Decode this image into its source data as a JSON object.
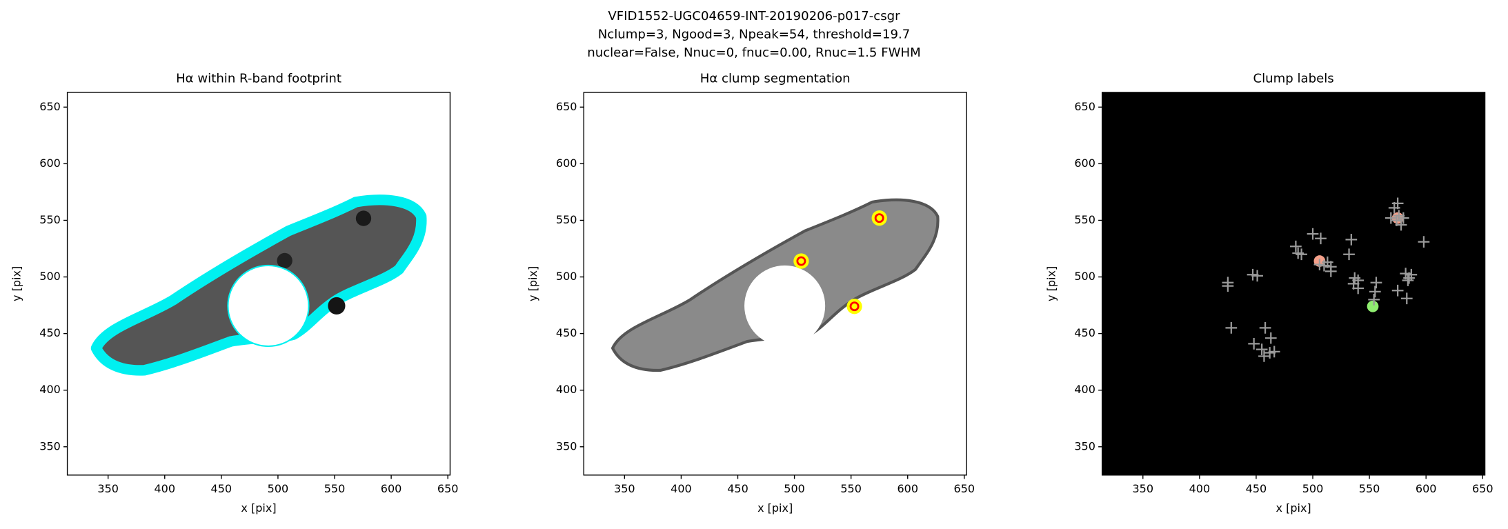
{
  "figure_title": [
    "VFID1552-UGC04659-INT-20190206-p017-csgr",
    "Nclump=3, Ngood=3, Npeak=54, threshold=19.7",
    "nuclear=False, Nnuc=0, fnuc=0.00, Rnuc=1.5 FWHM"
  ],
  "chart_data": [
    {
      "type": "image",
      "title": "Hα within R-band footprint",
      "xlabel": "x [pix]",
      "ylabel": "y [pix]",
      "xlim": [
        314,
        652
      ],
      "ylim": [
        325,
        663
      ],
      "xticks": [
        350,
        400,
        450,
        500,
        550,
        600,
        650
      ],
      "yticks": [
        350,
        400,
        450,
        500,
        550,
        600,
        650
      ]
    },
    {
      "type": "image",
      "title": "Hα clump segmentation",
      "xlabel": "x [pix]",
      "ylabel": "y [pix]",
      "xlim": [
        314,
        652
      ],
      "ylim": [
        325,
        663
      ],
      "xticks": [
        350,
        400,
        450,
        500,
        550,
        600,
        650
      ],
      "yticks": [
        350,
        400,
        450,
        500,
        550,
        600,
        650
      ],
      "series": [
        {
          "marker": "ring",
          "color": "#ff0000",
          "halo_color": "#ffff00",
          "x": [
            575,
            506,
            553
          ],
          "values": [
            552,
            514,
            474
          ]
        }
      ]
    },
    {
      "type": "image",
      "title": "Clump labels",
      "xlabel": "x [pix]",
      "ylabel": "y [pix]",
      "xlim": [
        314,
        652
      ],
      "ylim": [
        325,
        663
      ],
      "xticks": [
        350,
        400,
        450,
        500,
        550,
        600,
        650
      ],
      "yticks": [
        350,
        400,
        450,
        500,
        550,
        600,
        650
      ],
      "background": "#000000",
      "series": [
        {
          "marker": "blob",
          "colors": [
            "#f4a08a",
            "#f4a08a",
            "#90ee70"
          ],
          "x": [
            575,
            506,
            553
          ],
          "values": [
            552,
            514,
            474
          ]
        },
        {
          "marker": "plus",
          "color": "#9a9a9a",
          "x": [
            425,
            425,
            428,
            447,
            451,
            448,
            455,
            458,
            457,
            462,
            463,
            466,
            485,
            487,
            490,
            500,
            507,
            506,
            510,
            513,
            516,
            516,
            532,
            534,
            536,
            537,
            540,
            540,
            556,
            555,
            554,
            569,
            572,
            575,
            574,
            576,
            580,
            578,
            582,
            584,
            585,
            587,
            583,
            575,
            598
          ],
          "values": [
            495,
            492,
            455,
            502,
            501,
            441,
            436,
            455,
            430,
            433,
            446,
            434,
            527,
            521,
            520,
            538,
            534,
            511,
            510,
            513,
            505,
            509,
            520,
            533,
            494,
            499,
            497,
            490,
            495,
            487,
            480,
            552,
            561,
            565,
            550,
            554,
            552,
            546,
            503,
            497,
            499,
            502,
            481,
            488,
            531
          ]
        }
      ]
    }
  ]
}
